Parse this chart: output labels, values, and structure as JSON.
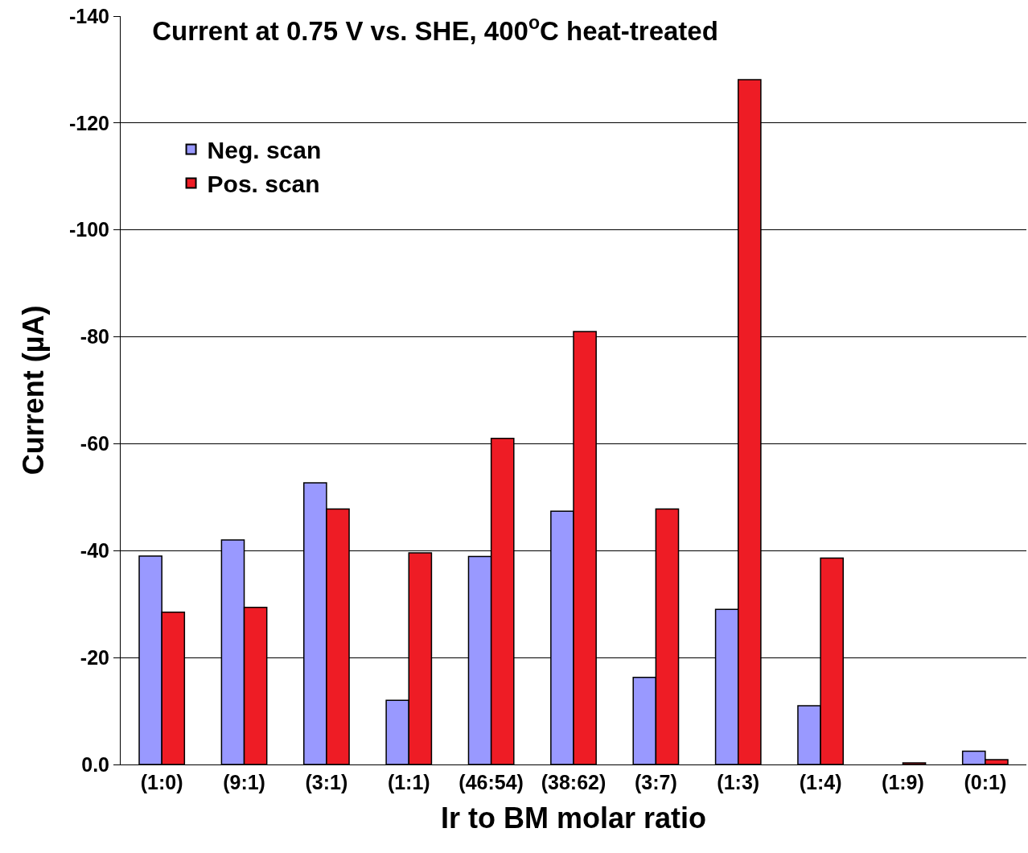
{
  "chart_data": {
    "type": "bar",
    "title": "Current at 0.75 V vs. SHE, 400$^{o}$C heat-treated",
    "xlabel": "Ir to BM molar ratio",
    "ylabel": "Current (µA)",
    "categories": [
      "(1:0)",
      "(9:1)",
      "(3:1)",
      "(1:1)",
      "(46:54)",
      "(38:62)",
      "(3:7)",
      "(1:3)",
      "(1:4)",
      "(1:9)",
      "(0:1)"
    ],
    "series": [
      {
        "name": "Neg. scan",
        "color": "#9999ff",
        "values": [
          -39,
          -42,
          -52.7,
          -12,
          -38.9,
          -47.4,
          -16.3,
          -29,
          -11,
          null,
          -2.5
        ]
      },
      {
        "name": "Pos. scan",
        "color": "#ee1c25",
        "values": [
          -28.5,
          -29.4,
          -47.8,
          -39.6,
          -61,
          -81,
          -47.8,
          -128.1,
          -38.6,
          -0.3,
          -0.9
        ]
      }
    ],
    "ylim": [
      0,
      -140
    ],
    "yticks": [
      {
        "value": 0,
        "label": "0.0"
      },
      -20,
      -40,
      -60,
      -80,
      -100,
      -120,
      -140
    ],
    "grid": "y",
    "legend": "top left"
  }
}
